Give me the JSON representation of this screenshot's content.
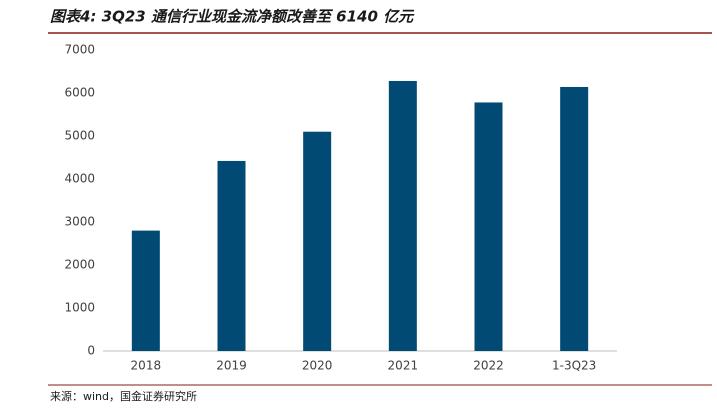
{
  "chart_data": {
    "type": "bar",
    "title": "图表4: 3Q23 通信行业现金流净额改善至 6140 亿元",
    "categories": [
      "2018",
      "2019",
      "2020",
      "2021",
      "2022",
      "1-3Q23"
    ],
    "values": [
      2800,
      4420,
      5100,
      6280,
      5780,
      6140
    ],
    "color": "#014a73",
    "ylim": [
      0,
      7000
    ],
    "yticks": [
      0,
      1000,
      2000,
      3000,
      4000,
      5000,
      6000,
      7000
    ],
    "grid": false,
    "source": "来源：wind，国金证券研究所"
  }
}
